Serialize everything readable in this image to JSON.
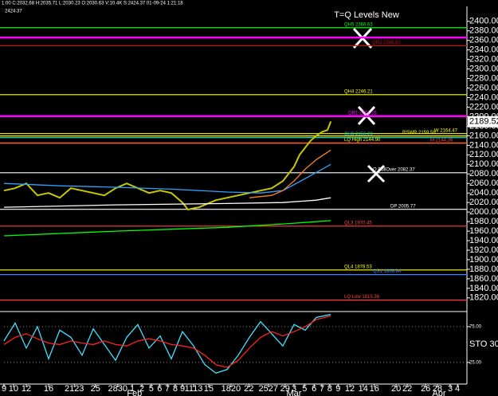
{
  "header": "1:00 C:2032.68 H:2035.71 L:2030.23 O:2030.63 V:10.4K S:2424.37 01-09-24 1:21:18",
  "subheader": "2424.37",
  "chart_data": [
    {
      "type": "line",
      "title": "T=Q Levels New",
      "xlim": [
        0,
        83
      ],
      "ylim": [
        1793,
        2428
      ],
      "xticks": [
        {
          "value": 0,
          "label": "9"
        },
        {
          "value": 1.7,
          "label": "10"
        },
        {
          "value": 4,
          "label": "12"
        },
        {
          "value": 8,
          "label": "16"
        },
        {
          "value": 12.6,
          "label": "2123"
        },
        {
          "value": 16.4,
          "label": "25"
        },
        {
          "value": 20.4,
          "label": "2830"
        },
        {
          "value": 23,
          "label": "1"
        },
        {
          "value": 24.7,
          "label": "2"
        },
        {
          "value": 26.4,
          "label": "5"
        },
        {
          "value": 27.9,
          "label": "6"
        },
        {
          "value": 29.3,
          "label": "7"
        },
        {
          "value": 30.7,
          "label": "8"
        },
        {
          "value": 32,
          "label": "9"
        },
        {
          "value": 34,
          "label": "1113"
        },
        {
          "value": 36.7,
          "label": "15"
        },
        {
          "value": 40.7,
          "label": "1820"
        },
        {
          "value": 43.9,
          "label": "22"
        },
        {
          "value": 47.4,
          "label": "2527"
        },
        {
          "value": 50.4,
          "label": "29"
        },
        {
          "value": 52,
          "label": "3"
        },
        {
          "value": 53.9,
          "label": "5"
        },
        {
          "value": 55.6,
          "label": "6"
        },
        {
          "value": 57,
          "label": "7"
        },
        {
          "value": 58.4,
          "label": "8"
        },
        {
          "value": 59.9,
          "label": "9"
        },
        {
          "value": 62,
          "label": "12"
        },
        {
          "value": 64.4,
          "label": "14"
        },
        {
          "value": 66.4,
          "label": "16"
        },
        {
          "value": 70.3,
          "label": "20"
        },
        {
          "value": 72.3,
          "label": "22"
        },
        {
          "value": 75.6,
          "label": "26"
        },
        {
          "value": 77.7,
          "label": "28"
        },
        {
          "value": 80,
          "label": "3"
        },
        {
          "value": 81.3,
          "label": "4"
        }
      ],
      "month_ticks": [
        {
          "value": 23.4,
          "label": "Feb"
        },
        {
          "value": 52,
          "label": "Mar"
        },
        {
          "value": 78,
          "label": "Apr"
        }
      ],
      "yticks": [
        {
          "value": 1820,
          "label": "1820.00"
        },
        {
          "value": 1840,
          "label": "1840.00"
        },
        {
          "value": 1860,
          "label": "1860.00"
        },
        {
          "value": 1880,
          "label": "1880.00"
        },
        {
          "value": 1900,
          "label": "1900.00"
        },
        {
          "value": 1920,
          "label": "1920.00"
        },
        {
          "value": 1940,
          "label": "1940.00"
        },
        {
          "value": 1960,
          "label": "1960.00"
        },
        {
          "value": 1980,
          "label": "1980.00"
        },
        {
          "value": 2000,
          "label": "2000.00"
        },
        {
          "value": 2020,
          "label": "2020.00"
        },
        {
          "value": 2040,
          "label": "2040.00"
        },
        {
          "value": 2060,
          "label": "2060.00"
        },
        {
          "value": 2080,
          "label": "2080.00"
        },
        {
          "value": 2100,
          "label": "2100.00"
        },
        {
          "value": 2120,
          "label": "2120.00"
        },
        {
          "value": 2140,
          "label": "2140.00"
        },
        {
          "value": 2160,
          "label": "2160.00"
        },
        {
          "value": 2180,
          "label": "2180.00"
        },
        {
          "value": 2200,
          "label": "2200.00"
        },
        {
          "value": 2220,
          "label": "2220.00"
        },
        {
          "value": 2240,
          "label": "2240.00"
        },
        {
          "value": 2260,
          "label": "2260.00"
        },
        {
          "value": 2280,
          "label": "2280.00"
        },
        {
          "value": 2300,
          "label": "2300.00"
        },
        {
          "value": 2320,
          "label": "2320.00"
        },
        {
          "value": 2340,
          "label": "2340.00"
        },
        {
          "value": 2360,
          "label": "2360.00"
        },
        {
          "value": 2380,
          "label": "2380.00"
        },
        {
          "value": 2400,
          "label": "2400.00"
        }
      ],
      "last_price": 2189.52,
      "levels": [
        {
          "label": "QH5 2386.63",
          "value": 2386.63,
          "color": "#00ff00"
        },
        {
          "value": 2366,
          "color": "#ff00ff"
        },
        {
          "label": "QR2 2348.83",
          "value": 2348.83,
          "color": "#c01010"
        },
        {
          "label": "QH4 2246.21",
          "value": 2246.21,
          "color": "#ffff00"
        },
        {
          "label": "QR1 2201.25",
          "value": 2201.25,
          "color": "#ff00ff"
        },
        {
          "label": "W 2164.47",
          "value": 2164.47,
          "color": "#ffff00"
        },
        {
          "label": "RSWR 2159.58",
          "value": 2159.58,
          "color": "#ffff00"
        },
        {
          "label": "QH3 2156.29",
          "value": 2156.29,
          "color": "#00d0d0"
        },
        {
          "label": "LQ High 2144.90",
          "value": 2144.9,
          "color": "#ffff00"
        },
        {
          "label": "M 2144.36",
          "value": 2144.36,
          "color": "#ff4040"
        },
        {
          "label": "Q PullOver 2082.37",
          "value": 2082.37,
          "color": "#ffffff"
        },
        {
          "label": "DP 2005.77",
          "value": 2005.77,
          "color": "#ffffff"
        },
        {
          "label": "QL3 1970.45",
          "value": 1970.45,
          "color": "#ff4040"
        },
        {
          "label": "QL4 1878.53",
          "value": 1878.53,
          "color": "#ffff00"
        },
        {
          "label": "QS1 1868.84",
          "value": 1868.84,
          "color": "#4080ff"
        },
        {
          "label": "LQ Low 1815.36",
          "value": 1815.36,
          "color": "#ff4040"
        }
      ],
      "series": [
        {
          "color": "#c8c800",
          "x": [
            0,
            2,
            4,
            6,
            8,
            10,
            12,
            14,
            16,
            18,
            20,
            22,
            24,
            26,
            28,
            30,
            32,
            33,
            34,
            35,
            36,
            38,
            40,
            42,
            44,
            46,
            48,
            50,
            51,
            52,
            53,
            54,
            55,
            56,
            57,
            58,
            58.6
          ],
          "values": [
            2045,
            2050,
            2060,
            2035,
            2040,
            2030,
            2050,
            2045,
            2040,
            2035,
            2050,
            2060,
            2050,
            2040,
            2045,
            2040,
            2020,
            2005,
            2008,
            2010,
            2015,
            2025,
            2030,
            2035,
            2040,
            2045,
            2050,
            2065,
            2080,
            2095,
            2120,
            2135,
            2150,
            2160,
            2168,
            2172,
            2190
          ]
        },
        {
          "color": "#30a0ff",
          "x": [
            0,
            10,
            20,
            30,
            40,
            46,
            50,
            54,
            58.6
          ],
          "values": [
            2060,
            2055,
            2052,
            2048,
            2042,
            2040,
            2045,
            2070,
            2100
          ]
        },
        {
          "color": "#ff8020",
          "x": [
            44,
            48,
            50,
            52,
            54,
            56,
            58.6
          ],
          "values": [
            2030,
            2035,
            2045,
            2065,
            2090,
            2110,
            2130
          ]
        },
        {
          "color": "#ffffff",
          "x": [
            0,
            20,
            40,
            50,
            56,
            58.6
          ],
          "values": [
            2010,
            2015,
            2018,
            2020,
            2025,
            2030
          ]
        },
        {
          "color": "#00ff00",
          "x": [
            0,
            20,
            40,
            50,
            58.6
          ],
          "values": [
            1950,
            1960,
            1968,
            1975,
            1982
          ]
        }
      ]
    },
    {
      "type": "line",
      "label": "STO 30,",
      "xlim": [
        0,
        83
      ],
      "ylim": [
        -3,
        95
      ],
      "yticks": [
        {
          "value": 75,
          "label": "75.00"
        },
        {
          "value": 25,
          "label": "25.00"
        }
      ],
      "series": [
        {
          "color": "#40e0ff",
          "x": [
            0,
            2,
            4,
            6,
            8,
            10,
            12,
            14,
            16,
            18,
            20,
            22,
            24,
            26,
            28,
            30,
            32,
            34,
            36,
            38,
            40,
            42,
            44,
            46,
            48,
            50,
            52,
            54,
            56,
            58.6
          ],
          "values": [
            55,
            80,
            45,
            75,
            30,
            70,
            60,
            35,
            72,
            50,
            28,
            60,
            78,
            45,
            62,
            30,
            68,
            48,
            22,
            10,
            15,
            35,
            60,
            82,
            65,
            48,
            78,
            70,
            88,
            92
          ]
        },
        {
          "color": "#ff2020",
          "x": [
            0,
            2,
            4,
            6,
            8,
            10,
            12,
            14,
            16,
            18,
            20,
            22,
            24,
            26,
            28,
            30,
            32,
            34,
            36,
            38,
            40,
            42,
            44,
            46,
            48,
            50,
            52,
            54,
            56,
            58.6
          ],
          "values": [
            50,
            60,
            65,
            58,
            52,
            50,
            55,
            52,
            50,
            55,
            50,
            48,
            55,
            58,
            55,
            50,
            48,
            45,
            35,
            22,
            18,
            28,
            45,
            60,
            68,
            62,
            68,
            75,
            85,
            90
          ]
        }
      ]
    }
  ]
}
